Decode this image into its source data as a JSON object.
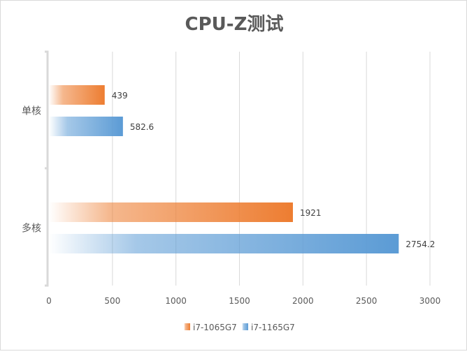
{
  "chart_data": {
    "type": "bar",
    "orientation": "horizontal",
    "title": "CPU-Z测试",
    "categories": [
      "单核",
      "多核"
    ],
    "series": [
      {
        "name": "i7-1065G7",
        "values": [
          439,
          1921
        ],
        "color": "#ED7D31"
      },
      {
        "name": "i7-1165G7",
        "values": [
          582.6,
          2754.2
        ],
        "color": "#5B9BD5"
      }
    ],
    "data_labels": [
      [
        "439",
        "1921"
      ],
      [
        "582.6",
        "2754.2"
      ]
    ],
    "xlim": [
      0,
      3000
    ],
    "xticks": [
      0,
      500,
      1000,
      1500,
      2000,
      2500,
      3000
    ],
    "xlabel": "",
    "ylabel": "",
    "grid": true,
    "legend": "bottom"
  }
}
